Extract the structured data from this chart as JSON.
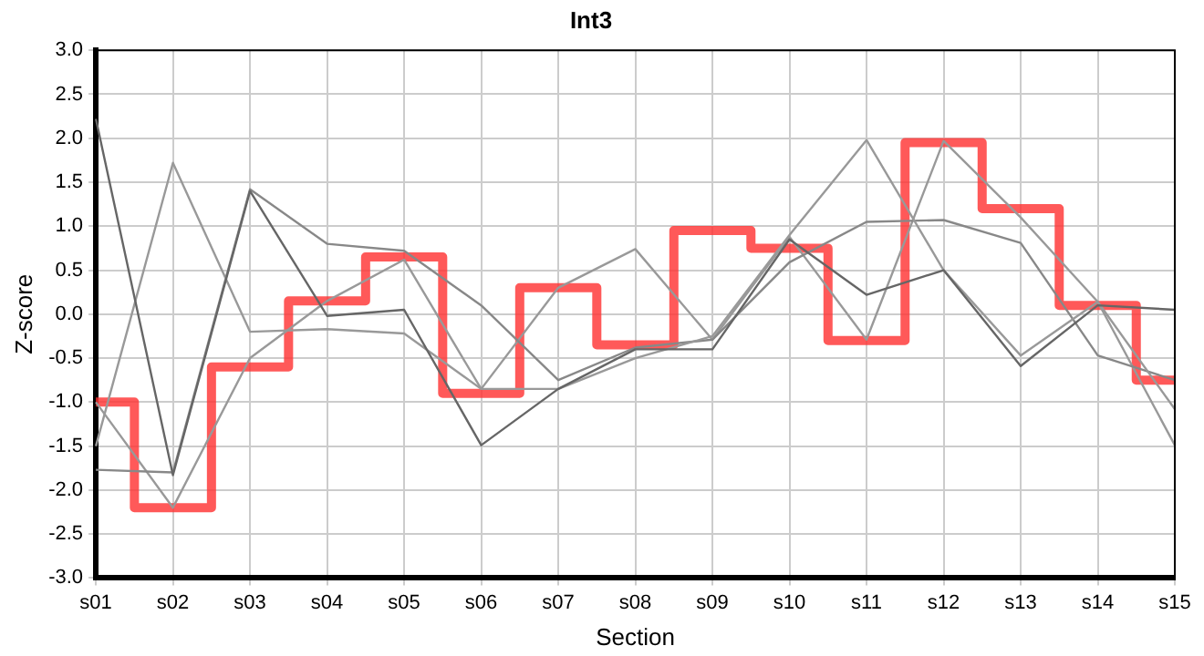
{
  "chart_data": {
    "type": "line",
    "title": "Int3",
    "xlabel": "Section",
    "ylabel": "Z-score",
    "categories": [
      "s01",
      "s02",
      "s03",
      "s04",
      "s05",
      "s06",
      "s07",
      "s08",
      "s09",
      "s10",
      "s11",
      "s12",
      "s13",
      "s14",
      "s15"
    ],
    "series": [
      {
        "color": "#666666",
        "values": [
          2.22,
          -1.83,
          1.4,
          -0.02,
          0.05,
          -1.49,
          -0.85,
          -0.4,
          -0.4,
          0.85,
          0.22,
          0.5,
          -0.59,
          0.1,
          0.05
        ]
      },
      {
        "color": "#999999",
        "values": [
          -1.5,
          1.72,
          -0.2,
          -0.17,
          -0.22,
          -0.85,
          -0.85,
          -0.5,
          -0.25,
          0.9,
          1.98,
          0.5,
          -0.47,
          0.14,
          -1.08
        ]
      },
      {
        "color": "#888888",
        "values": [
          -1.77,
          -1.8,
          1.42,
          0.8,
          0.72,
          0.1,
          -0.75,
          -0.38,
          -0.29,
          0.59,
          1.05,
          1.07,
          0.81,
          -0.47,
          -0.75
        ]
      },
      {
        "color": "#999999",
        "values": [
          -1.0,
          -2.2,
          -0.5,
          0.15,
          0.62,
          -0.85,
          0.3,
          0.74,
          -0.29,
          0.88,
          -0.29,
          1.97,
          1.1,
          0.14,
          -1.49
        ]
      },
      {
        "type": "step",
        "color": "#ff3333",
        "values": [
          -1.0,
          -2.2,
          -0.6,
          0.15,
          0.65,
          -0.9,
          0.3,
          -0.35,
          0.95,
          0.75,
          -0.3,
          1.95,
          1.2,
          0.1,
          -0.75
        ]
      }
    ],
    "ylim": [
      -3,
      3
    ],
    "yticks": [
      {
        "value": -3,
        "label": "-3.0"
      },
      {
        "value": -2.5,
        "label": "-2.5"
      },
      {
        "value": -2,
        "label": "-2.0"
      },
      {
        "value": -1.5,
        "label": "-1.5"
      },
      {
        "value": -1,
        "label": "-1.0"
      },
      {
        "value": -0.5,
        "label": "-0.5"
      },
      {
        "value": 0,
        "label": "0.0"
      },
      {
        "value": 0.5,
        "label": "0.5"
      },
      {
        "value": 1,
        "label": "1.0"
      },
      {
        "value": 1.5,
        "label": "1.5"
      },
      {
        "value": 2,
        "label": "2.0"
      },
      {
        "value": 2.5,
        "label": "2.5"
      },
      {
        "value": 3,
        "label": "3.0"
      }
    ],
    "grid": true,
    "legend": false,
    "marker": "none",
    "line_style": "solid"
  }
}
